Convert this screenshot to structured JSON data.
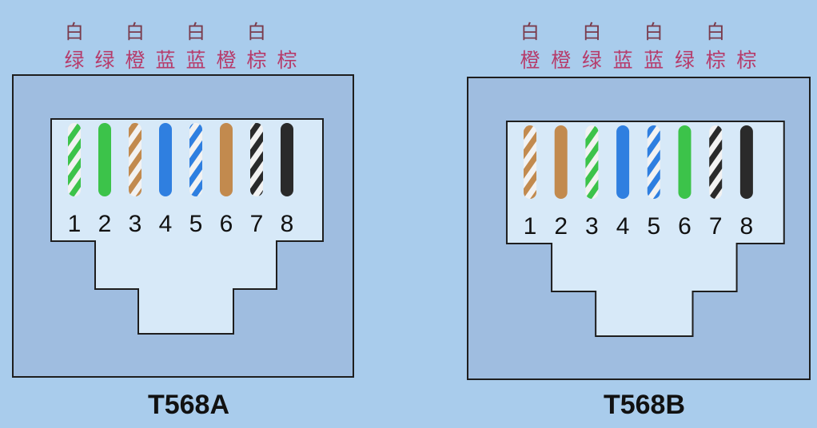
{
  "colors": {
    "page_background": "#a9ccec",
    "housing_fill": "#9fbde0",
    "housing_stroke": "#1e1e1e",
    "contact_area_fill": "#d7e9f8",
    "white_label": "#7a3b4c",
    "color_label": "#b63c6b",
    "green": "#3cc34a",
    "orange": "#c28a4e",
    "blue": "#2f7fe0",
    "brown": "#2a2a2a",
    "stripe_white": "#f2f2f2"
  },
  "connectors": [
    {
      "id": "t568a",
      "title": "T568A",
      "white_markers": [
        "白",
        "",
        "白",
        "",
        "白",
        "",
        "白",
        ""
      ],
      "color_words": [
        "绿",
        "绿",
        "橙",
        "蓝",
        "蓝",
        "橙",
        "棕",
        "棕"
      ],
      "pins": [
        {
          "number": "1",
          "color": "green",
          "striped": true
        },
        {
          "number": "2",
          "color": "green",
          "striped": false
        },
        {
          "number": "3",
          "color": "orange",
          "striped": true
        },
        {
          "number": "4",
          "color": "blue",
          "striped": false
        },
        {
          "number": "5",
          "color": "blue",
          "striped": true
        },
        {
          "number": "6",
          "color": "orange",
          "striped": false
        },
        {
          "number": "7",
          "color": "brown",
          "striped": true
        },
        {
          "number": "8",
          "color": "brown",
          "striped": false
        }
      ]
    },
    {
      "id": "t568b",
      "title": "T568B",
      "white_markers": [
        "白",
        "",
        "白",
        "",
        "白",
        "",
        "白",
        ""
      ],
      "color_words": [
        "橙",
        "橙",
        "绿",
        "蓝",
        "蓝",
        "绿",
        "棕",
        "棕"
      ],
      "pins": [
        {
          "number": "1",
          "color": "orange",
          "striped": true
        },
        {
          "number": "2",
          "color": "orange",
          "striped": false
        },
        {
          "number": "3",
          "color": "green",
          "striped": true
        },
        {
          "number": "4",
          "color": "blue",
          "striped": false
        },
        {
          "number": "5",
          "color": "blue",
          "striped": true
        },
        {
          "number": "6",
          "color": "green",
          "striped": false
        },
        {
          "number": "7",
          "color": "brown",
          "striped": true
        },
        {
          "number": "8",
          "color": "brown",
          "striped": false
        }
      ]
    }
  ]
}
